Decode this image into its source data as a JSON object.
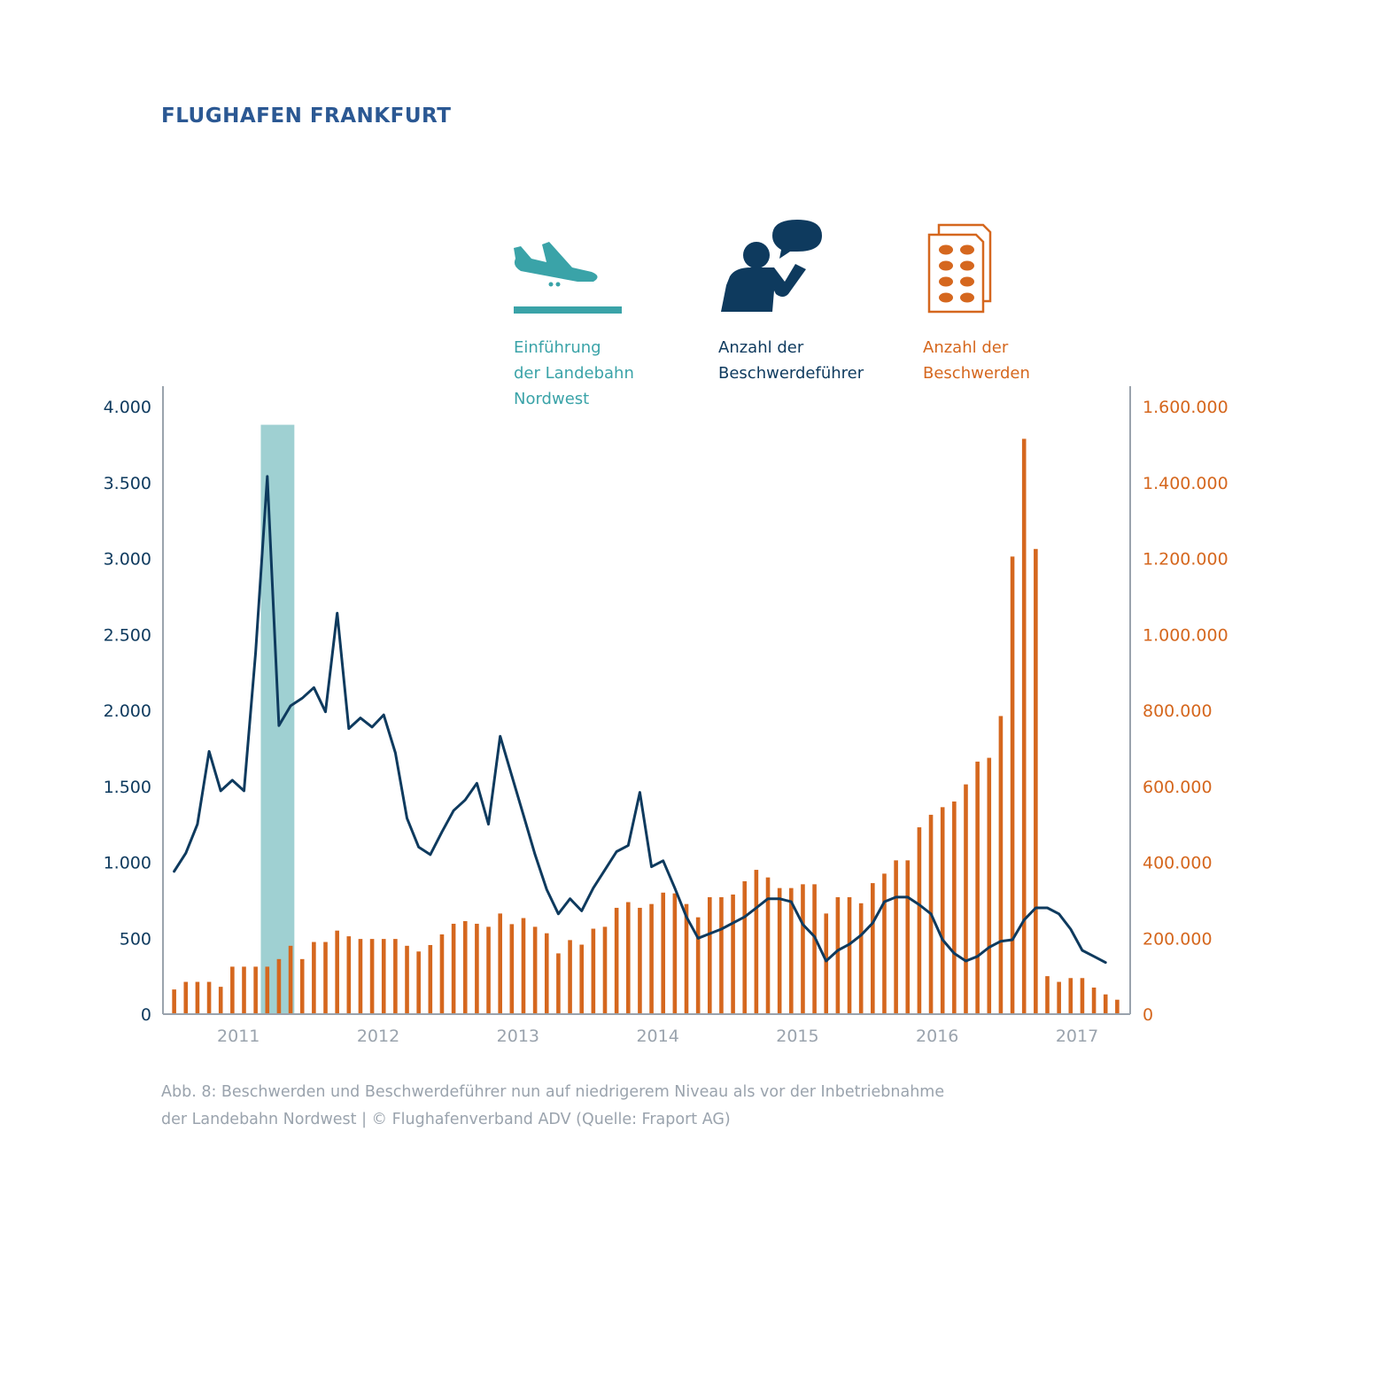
{
  "title": "FLUGHAFEN FRANKFURT",
  "legend": [
    {
      "id": "runway",
      "lines": [
        "Einführung",
        "der Landebahn",
        "Nordwest"
      ],
      "icon": "airplane-landing-icon",
      "color": "#3aa3a8"
    },
    {
      "id": "complainants",
      "lines": [
        "Anzahl der",
        "Beschwerdeführer"
      ],
      "icon": "person-speech-icon",
      "color": "#0e3a5e"
    },
    {
      "id": "complaints",
      "lines": [
        "Anzahl der",
        "Beschwerden"
      ],
      "icon": "documents-icon",
      "color": "#d5671e"
    }
  ],
  "caption": [
    "Abb. 8: Beschwerden und Beschwerdeführer nun auf niedrigerem Niveau als vor der Inbetriebnahme",
    "der Landebahn Nordwest | © Flughafenverband ADV (Quelle: Fraport AG)"
  ],
  "chart_data": {
    "type": "bar+line",
    "x_range": [
      2010.46,
      2017.38
    ],
    "x_ticks": [
      "2011",
      "2012",
      "2013",
      "2014",
      "2015",
      "2016",
      "2017"
    ],
    "x_tick_values": [
      2011.0,
      2012.0,
      2013.0,
      2014.0,
      2015.0,
      2016.0,
      2017.0
    ],
    "y_left": {
      "label": "Anzahl der Beschwerdeführer",
      "range": [
        0,
        4000
      ],
      "ticks": [
        "0",
        "500",
        "1.000",
        "1.500",
        "2.000",
        "2.500",
        "3.000",
        "3.500",
        "4.000"
      ],
      "tick_values": [
        0,
        500,
        1000,
        1500,
        2000,
        2500,
        3000,
        3500,
        4000
      ],
      "color": "#0e3a5e"
    },
    "y_right": {
      "label": "Anzahl der Beschwerden",
      "range": [
        0,
        1600000
      ],
      "ticks": [
        "0",
        "200.000",
        "400.000",
        "600.000",
        "800.000",
        "1.000.000",
        "1.200.000",
        "1.400.000",
        "1.600.000"
      ],
      "tick_values": [
        0,
        200000,
        400000,
        600000,
        800000,
        1000000,
        1200000,
        1400000,
        1600000
      ],
      "color": "#d5671e"
    },
    "highlight": {
      "label": "Einführung der Landebahn Nordwest",
      "x_start": 2011.16,
      "x_end": 2011.4,
      "y_top": 3880,
      "color": "#9fd0d2"
    },
    "series": [
      {
        "name": "Anzahl der Beschwerden",
        "type": "bar",
        "axis": "right",
        "color": "#d5671e",
        "x_start": 2010.54,
        "x_step": 0.0833,
        "values": [
          65000,
          85000,
          85000,
          85000,
          72000,
          125000,
          125000,
          125000,
          125000,
          145000,
          180000,
          145000,
          190000,
          190000,
          220000,
          205000,
          198000,
          198000,
          198000,
          198000,
          180000,
          165000,
          182000,
          210000,
          238000,
          245000,
          238000,
          230000,
          265000,
          237000,
          253000,
          230000,
          213000,
          160000,
          195000,
          183000,
          225000,
          230000,
          280000,
          295000,
          280000,
          290000,
          320000,
          318000,
          290000,
          255000,
          308000,
          308000,
          315000,
          350000,
          380000,
          360000,
          332000,
          332000,
          342000,
          342000,
          265000,
          308000,
          308000,
          292000,
          345000,
          370000,
          405000,
          405000,
          492000,
          525000,
          545000,
          560000,
          605000,
          665000,
          675000,
          785000,
          1205000,
          1515000,
          1225000,
          100000,
          85000,
          95000,
          95000,
          70000,
          52000,
          38000
        ]
      },
      {
        "name": "Anzahl der Beschwerdeführer",
        "type": "line",
        "axis": "left",
        "color": "#0e3a5e",
        "x_start": 2010.54,
        "x_step": 0.0833,
        "values": [
          940,
          1060,
          1250,
          1730,
          1470,
          1540,
          1470,
          2380,
          3540,
          1900,
          2030,
          2080,
          2150,
          1990,
          2640,
          1880,
          1950,
          1890,
          1970,
          1720,
          1290,
          1100,
          1050,
          1200,
          1340,
          1410,
          1520,
          1250,
          1830,
          1570,
          1310,
          1050,
          820,
          660,
          760,
          680,
          830,
          950,
          1070,
          1110,
          1460,
          970,
          1010,
          830,
          640,
          500,
          530,
          560,
          600,
          640,
          700,
          760,
          760,
          740,
          590,
          510,
          350,
          420,
          460,
          520,
          600,
          740,
          770,
          770,
          720,
          660,
          490,
          400,
          350,
          380,
          440,
          480,
          490,
          620,
          700,
          700,
          660,
          560,
          420,
          380,
          340
        ]
      }
    ]
  }
}
